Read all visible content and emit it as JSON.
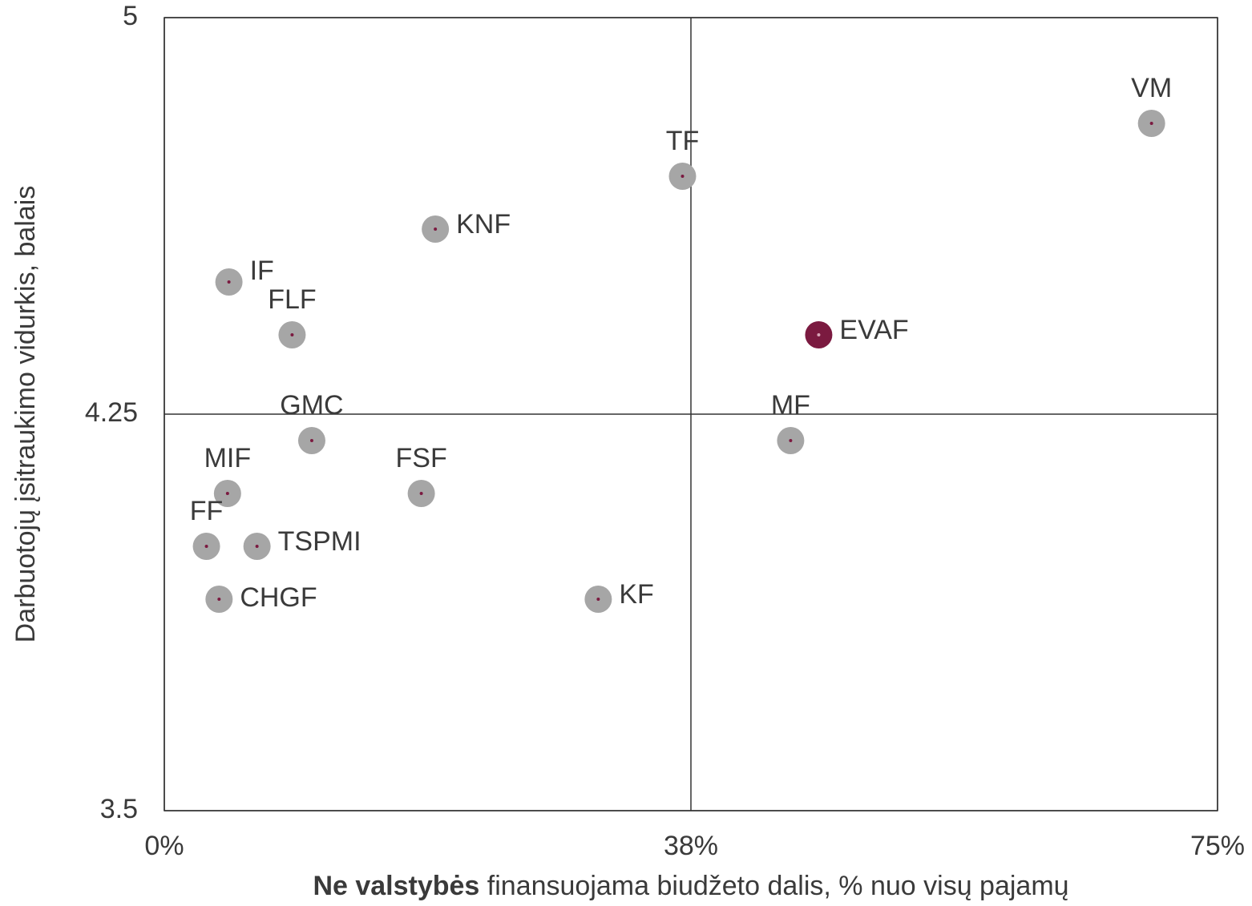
{
  "chart_data": {
    "type": "scatter",
    "xlabel": [
      "Ne valstybės",
      " finansuojama biudžeto dalis, % nuo visų pajamų"
    ],
    "ylabel": "Darbuotojų įsitraukimo vidurkis, balais",
    "labels": [
      "VM",
      "TF",
      "KNF",
      "IF",
      "FLF",
      "EVAF",
      "GMC",
      "MF",
      "MIF",
      "FSF",
      "FF",
      "TSPMI",
      "CHGF",
      "KF"
    ],
    "x": [
      70.3,
      36.9,
      19.3,
      4.6,
      9.1,
      46.6,
      10.5,
      44.6,
      4.5,
      18.3,
      3.0,
      6.6,
      3.9,
      30.9
    ],
    "y": [
      4.8,
      4.7,
      4.6,
      4.5,
      4.4,
      4.4,
      4.2,
      4.2,
      4.1,
      4.1,
      4.0,
      4.0,
      3.9,
      3.9
    ],
    "colors": [
      "#a6a6a6",
      "#a6a6a6",
      "#a6a6a6",
      "#a6a6a6",
      "#a6a6a6",
      "#7b1a40",
      "#a6a6a6",
      "#a6a6a6",
      "#a6a6a6",
      "#a6a6a6",
      "#a6a6a6",
      "#a6a6a6",
      "#a6a6a6",
      "#a6a6a6"
    ],
    "xlim": [
      0,
      75
    ],
    "xticks": [
      {
        "value": 0,
        "label": "0%"
      },
      {
        "value": 37.5,
        "label": "38%"
      },
      {
        "value": 75,
        "label": "75%"
      }
    ],
    "ylim": [
      3.5,
      5
    ],
    "yticks": [
      3.5,
      4.25,
      5
    ],
    "grid": true
  }
}
